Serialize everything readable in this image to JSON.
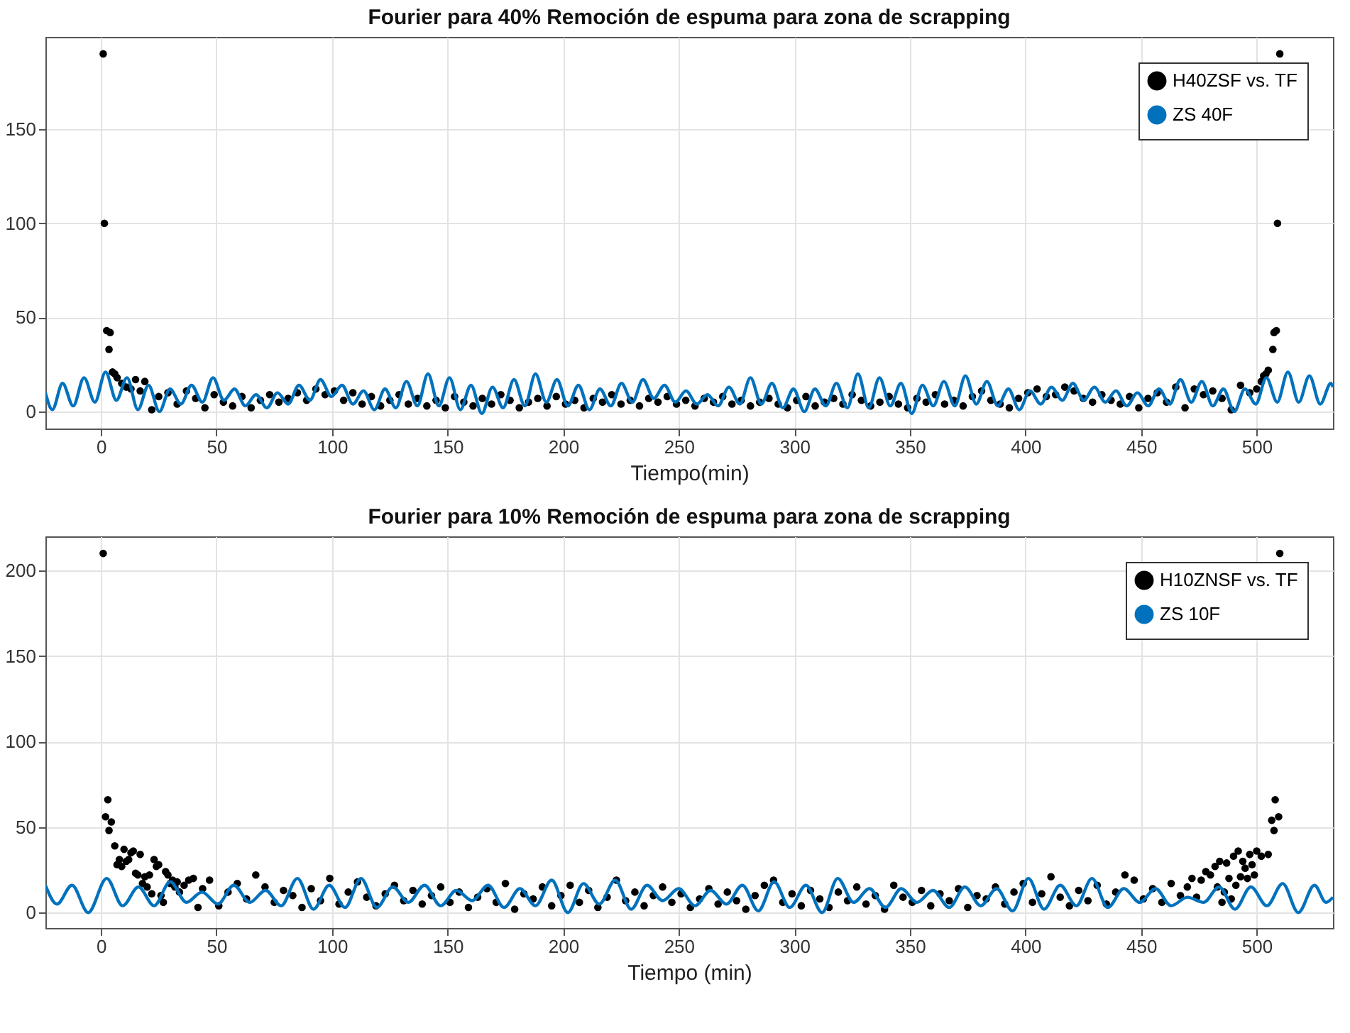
{
  "chart_data": [
    {
      "type": "scatter",
      "title": "Fourier para 40% Remoción de espuma para zona de scrapping",
      "xlabel": "Tiempo(min)",
      "xlim": [
        -24,
        533
      ],
      "xticks": [
        0,
        50,
        100,
        150,
        200,
        250,
        300,
        350,
        400,
        450,
        500
      ],
      "ylim": [
        -9,
        199
      ],
      "yticks": [
        0,
        50,
        100,
        150
      ],
      "grid": true,
      "legend": "top right",
      "series": [
        {
          "name": "H40ZSF vs. TF",
          "marker": "circle",
          "color": "#000000",
          "x": [
            1,
            1.5,
            2.5,
            3.5,
            4,
            5,
            6,
            7,
            9,
            11,
            13,
            15,
            17,
            19,
            22,
            25,
            29,
            33,
            37,
            41,
            45,
            49,
            53,
            57,
            61,
            65,
            69,
            73,
            77,
            81,
            85,
            89,
            93,
            97,
            101,
            105,
            109,
            113,
            117,
            121,
            125,
            129,
            133,
            137,
            141,
            145,
            149,
            153,
            157,
            161,
            165,
            169,
            173,
            177,
            181,
            185,
            189,
            193,
            197,
            201,
            205,
            209,
            213,
            217,
            221,
            225,
            229,
            233,
            237,
            241,
            245,
            249,
            253,
            257,
            261,
            265,
            269,
            273,
            277,
            281,
            285,
            289,
            293,
            297,
            301,
            305,
            309,
            313,
            317,
            321,
            325,
            329,
            333,
            337,
            341,
            345,
            349,
            353,
            357,
            361,
            365,
            369,
            373,
            377,
            381,
            385,
            389,
            393,
            397,
            401,
            405,
            409,
            413,
            417,
            421,
            425,
            429,
            433,
            437,
            441,
            445,
            449,
            453,
            457,
            461,
            465,
            469,
            473,
            477,
            481,
            485,
            489,
            493,
            497,
            500,
            502,
            503,
            504,
            505,
            507,
            507.5,
            508.5,
            509,
            510
          ],
          "values": [
            190,
            100,
            43,
            33,
            42,
            21,
            20,
            18,
            15,
            13,
            12,
            17,
            11,
            16,
            1,
            8,
            10,
            4,
            11,
            7,
            2,
            9,
            5,
            3,
            8,
            2,
            6,
            9,
            5,
            7,
            10,
            6,
            12,
            9,
            11,
            6,
            10,
            4,
            8,
            3,
            6,
            9,
            4,
            7,
            3,
            6,
            2,
            8,
            5,
            3,
            7,
            4,
            9,
            6,
            2,
            5,
            7,
            3,
            8,
            4,
            6,
            2,
            7,
            5,
            9,
            4,
            6,
            3,
            7,
            5,
            8,
            4,
            6,
            3,
            7,
            5,
            8,
            4,
            6,
            3,
            5,
            7,
            4,
            2,
            6,
            8,
            3,
            5,
            7,
            4,
            9,
            6,
            3,
            5,
            8,
            4,
            2,
            7,
            5,
            9,
            4,
            6,
            3,
            8,
            11,
            6,
            4,
            2,
            7,
            10,
            12,
            8,
            9,
            13,
            11,
            7,
            5,
            9,
            6,
            4,
            8,
            2,
            7,
            10,
            5,
            13,
            2,
            12,
            9,
            11,
            7,
            1,
            14,
            10,
            12,
            16,
            19,
            20,
            22,
            33,
            42,
            43,
            100,
            190
          ]
        },
        {
          "name": "ZS 40F",
          "type": "line",
          "line_style": "solid",
          "color": "#0072bd",
          "x": [
            -24,
            -21,
            -16.6,
            -12,
            -7.3,
            -2.6,
            2,
            6.7,
            11.3,
            16,
            20.6,
            25.3,
            29.9,
            34.6,
            39.2,
            43.9,
            48.5,
            53.2,
            57.8,
            62.5,
            67.1,
            71.8,
            76.4,
            81,
            85.7,
            90.4,
            95,
            99.7,
            104.3,
            109,
            113.6,
            118.3,
            122.9,
            127.6,
            132.2,
            136.9,
            141.5,
            146.2,
            150.8,
            155.5,
            160.1,
            164.8,
            169.4,
            174,
            178.7,
            183.4,
            188,
            192.7,
            197.3,
            202,
            206.6,
            211.3,
            215.9,
            220.6,
            225.2,
            229.9,
            234.5,
            239.2,
            243.8,
            248.5,
            253.1,
            257.8,
            262.4,
            267,
            271.7,
            276.4,
            281,
            285.7,
            290.3,
            295,
            299.6,
            304.3,
            308.9,
            313.6,
            318.2,
            322.9,
            327.5,
            332.2,
            336.8,
            341.5,
            346.1,
            350.8,
            355.4,
            360.1,
            364.7,
            369.4,
            374,
            378.7,
            383.3,
            388,
            392.6,
            397.3,
            401.9,
            406.6,
            411.2,
            415.9,
            420.5,
            425.2,
            429.8,
            434.5,
            439.1,
            443.8,
            448.4,
            453.1,
            457.7,
            462.4,
            467,
            471.7,
            476.3,
            481,
            485.6,
            490.3,
            494.9,
            499.6,
            504.2,
            508.9,
            513.5,
            518.2,
            522.8,
            527.5,
            532.1,
            533
          ],
          "values": [
            10,
            1,
            15,
            3,
            18,
            5,
            21,
            6,
            18,
            1,
            14,
            0,
            12,
            4,
            14,
            5,
            18,
            6,
            12,
            3,
            9,
            2,
            10,
            4,
            14,
            6,
            17,
            8,
            14,
            4,
            11,
            1,
            12,
            2,
            16,
            3,
            20,
            3,
            18,
            1,
            14,
            -1,
            13,
            2,
            17,
            3,
            20,
            5,
            17,
            3,
            14,
            1,
            12,
            3,
            15,
            5,
            17,
            7,
            14,
            5,
            11,
            4,
            9,
            3,
            13,
            4,
            18,
            4,
            15,
            2,
            12,
            0,
            12,
            3,
            15,
            2,
            20,
            2,
            18,
            3,
            15,
            -1,
            14,
            3,
            16,
            3,
            19,
            4,
            16,
            3,
            12,
            1,
            11,
            4,
            13,
            6,
            15,
            6,
            13,
            5,
            11,
            3,
            10,
            3,
            12,
            4,
            17,
            5,
            16,
            3,
            12,
            0,
            12,
            4,
            18,
            5,
            21,
            5,
            19,
            4,
            15,
            13
          ]
        }
      ]
    },
    {
      "type": "scatter",
      "title": "Fourier para 10% Remoción de espuma para zona de scrapping",
      "xlabel": "Tiempo (min)",
      "xlim": [
        -24,
        533
      ],
      "xticks": [
        0,
        50,
        100,
        150,
        200,
        250,
        300,
        350,
        400,
        450,
        500
      ],
      "ylim": [
        -9,
        220
      ],
      "yticks": [
        0,
        50,
        100,
        150,
        200
      ],
      "grid": true,
      "legend": "top right",
      "series": [
        {
          "name": "H10ZNSF vs. TF",
          "marker": "circle",
          "color": "#000000",
          "x": [
            1,
            2,
            3,
            3.5,
            4.5,
            6,
            7,
            8,
            9,
            10,
            11,
            12,
            13,
            14,
            15,
            16,
            17,
            18,
            19,
            20,
            21,
            22,
            23,
            24,
            25,
            26,
            27,
            28,
            29,
            30,
            31,
            32,
            33,
            34,
            36,
            38,
            40,
            42,
            44,
            47,
            51,
            55,
            59,
            63,
            67,
            71,
            75,
            79,
            83,
            87,
            91,
            95,
            99,
            103,
            107,
            111,
            115,
            119,
            123,
            127,
            131,
            135,
            139,
            143,
            147,
            151,
            155,
            159,
            163,
            167,
            171,
            175,
            179,
            183,
            187,
            191,
            195,
            199,
            203,
            207,
            211,
            215,
            219,
            223,
            227,
            231,
            235,
            239,
            243,
            247,
            251,
            255,
            259,
            263,
            267,
            271,
            275,
            279,
            283,
            287,
            291,
            295,
            299,
            303,
            307,
            311,
            315,
            319,
            323,
            327,
            331,
            335,
            339,
            343,
            347,
            351,
            355,
            359,
            363,
            367,
            371,
            375,
            379,
            383,
            387,
            391,
            395,
            399,
            403,
            407,
            411,
            415,
            419,
            423,
            427,
            431,
            435,
            439,
            443,
            447,
            451,
            455,
            459,
            463,
            467,
            470,
            472,
            474,
            476,
            478,
            480,
            482,
            483,
            484,
            485,
            486,
            487,
            488,
            489,
            490,
            491,
            492,
            493,
            494,
            495,
            496,
            497,
            498,
            499,
            500,
            502,
            505,
            506.5,
            507.5,
            508,
            509.5,
            510
          ],
          "values": [
            210,
            56,
            66,
            48,
            53,
            39,
            28,
            31,
            27,
            37,
            30,
            31,
            35,
            36,
            23,
            22,
            34,
            17,
            21,
            15,
            22,
            11,
            31,
            27,
            28,
            10,
            6,
            24,
            22,
            17,
            19,
            15,
            18,
            12,
            16,
            19,
            20,
            3,
            14,
            19,
            4,
            12,
            17,
            8,
            22,
            15,
            6,
            13,
            10,
            3,
            14,
            7,
            20,
            5,
            12,
            18,
            9,
            4,
            11,
            16,
            7,
            13,
            5,
            10,
            15,
            6,
            12,
            3,
            9,
            14,
            6,
            17,
            2,
            11,
            8,
            15,
            4,
            10,
            16,
            6,
            13,
            3,
            9,
            19,
            7,
            12,
            4,
            10,
            15,
            6,
            11,
            3,
            8,
            14,
            5,
            12,
            7,
            2,
            10,
            16,
            19,
            6,
            11,
            4,
            13,
            8,
            3,
            12,
            7,
            15,
            5,
            10,
            2,
            16,
            9,
            6,
            13,
            4,
            11,
            7,
            14,
            3,
            10,
            8,
            15,
            5,
            12,
            17,
            6,
            11,
            21,
            9,
            4,
            13,
            7,
            16,
            5,
            12,
            22,
            19,
            8,
            14,
            6,
            17,
            10,
            15,
            20,
            9,
            19,
            24,
            22,
            27,
            15,
            30,
            6,
            12,
            29,
            20,
            8,
            33,
            16,
            36,
            21,
            30,
            26,
            20,
            34,
            28,
            22,
            36,
            33,
            34,
            54,
            48,
            66,
            56,
            210
          ]
        },
        {
          "name": "ZS 10F",
          "type": "line",
          "line_style": "solid",
          "color": "#0072bd",
          "x": [
            -24,
            -19,
            -12.5,
            -5.5,
            2.5,
            9.4,
            16.25,
            23,
            30,
            37,
            43.75,
            50.6,
            57.5,
            64.4,
            71.25,
            78,
            85,
            92,
            98.75,
            105.6,
            112.5,
            119.4,
            126.25,
            133,
            140,
            147,
            153.75,
            160.6,
            167.5,
            174.4,
            181.25,
            188,
            195,
            202,
            208.75,
            215.6,
            222.5,
            229.4,
            236.25,
            243,
            250,
            257,
            263.75,
            270.6,
            277.5,
            284.4,
            291.25,
            298,
            305,
            312,
            318.75,
            325.6,
            332.5,
            339.4,
            346.25,
            353,
            360,
            367,
            373.75,
            380.6,
            387.5,
            394.4,
            401.25,
            408,
            415,
            422,
            428.75,
            435.6,
            442.5,
            449.4,
            456.25,
            463,
            470,
            477,
            483.75,
            490.6,
            497.5,
            504.4,
            511.25,
            518,
            525,
            530,
            533
          ],
          "values": [
            16,
            5,
            16,
            0,
            20,
            4,
            15,
            4,
            18,
            6,
            12,
            5,
            16,
            6,
            13,
            4,
            20,
            2,
            16,
            3,
            20,
            3,
            15,
            6,
            16,
            4,
            13,
            7,
            16,
            3,
            14,
            4,
            19,
            0,
            17,
            5,
            19,
            2,
            16,
            7,
            14,
            4,
            13,
            5,
            16,
            1,
            18,
            3,
            16,
            0,
            20,
            6,
            14,
            3,
            14,
            6,
            13,
            3,
            15,
            4,
            14,
            1,
            20,
            2,
            16,
            4,
            20,
            3,
            14,
            6,
            14,
            4,
            9,
            6,
            15,
            2,
            15,
            4,
            17,
            0,
            16,
            6,
            9
          ]
        }
      ]
    }
  ]
}
